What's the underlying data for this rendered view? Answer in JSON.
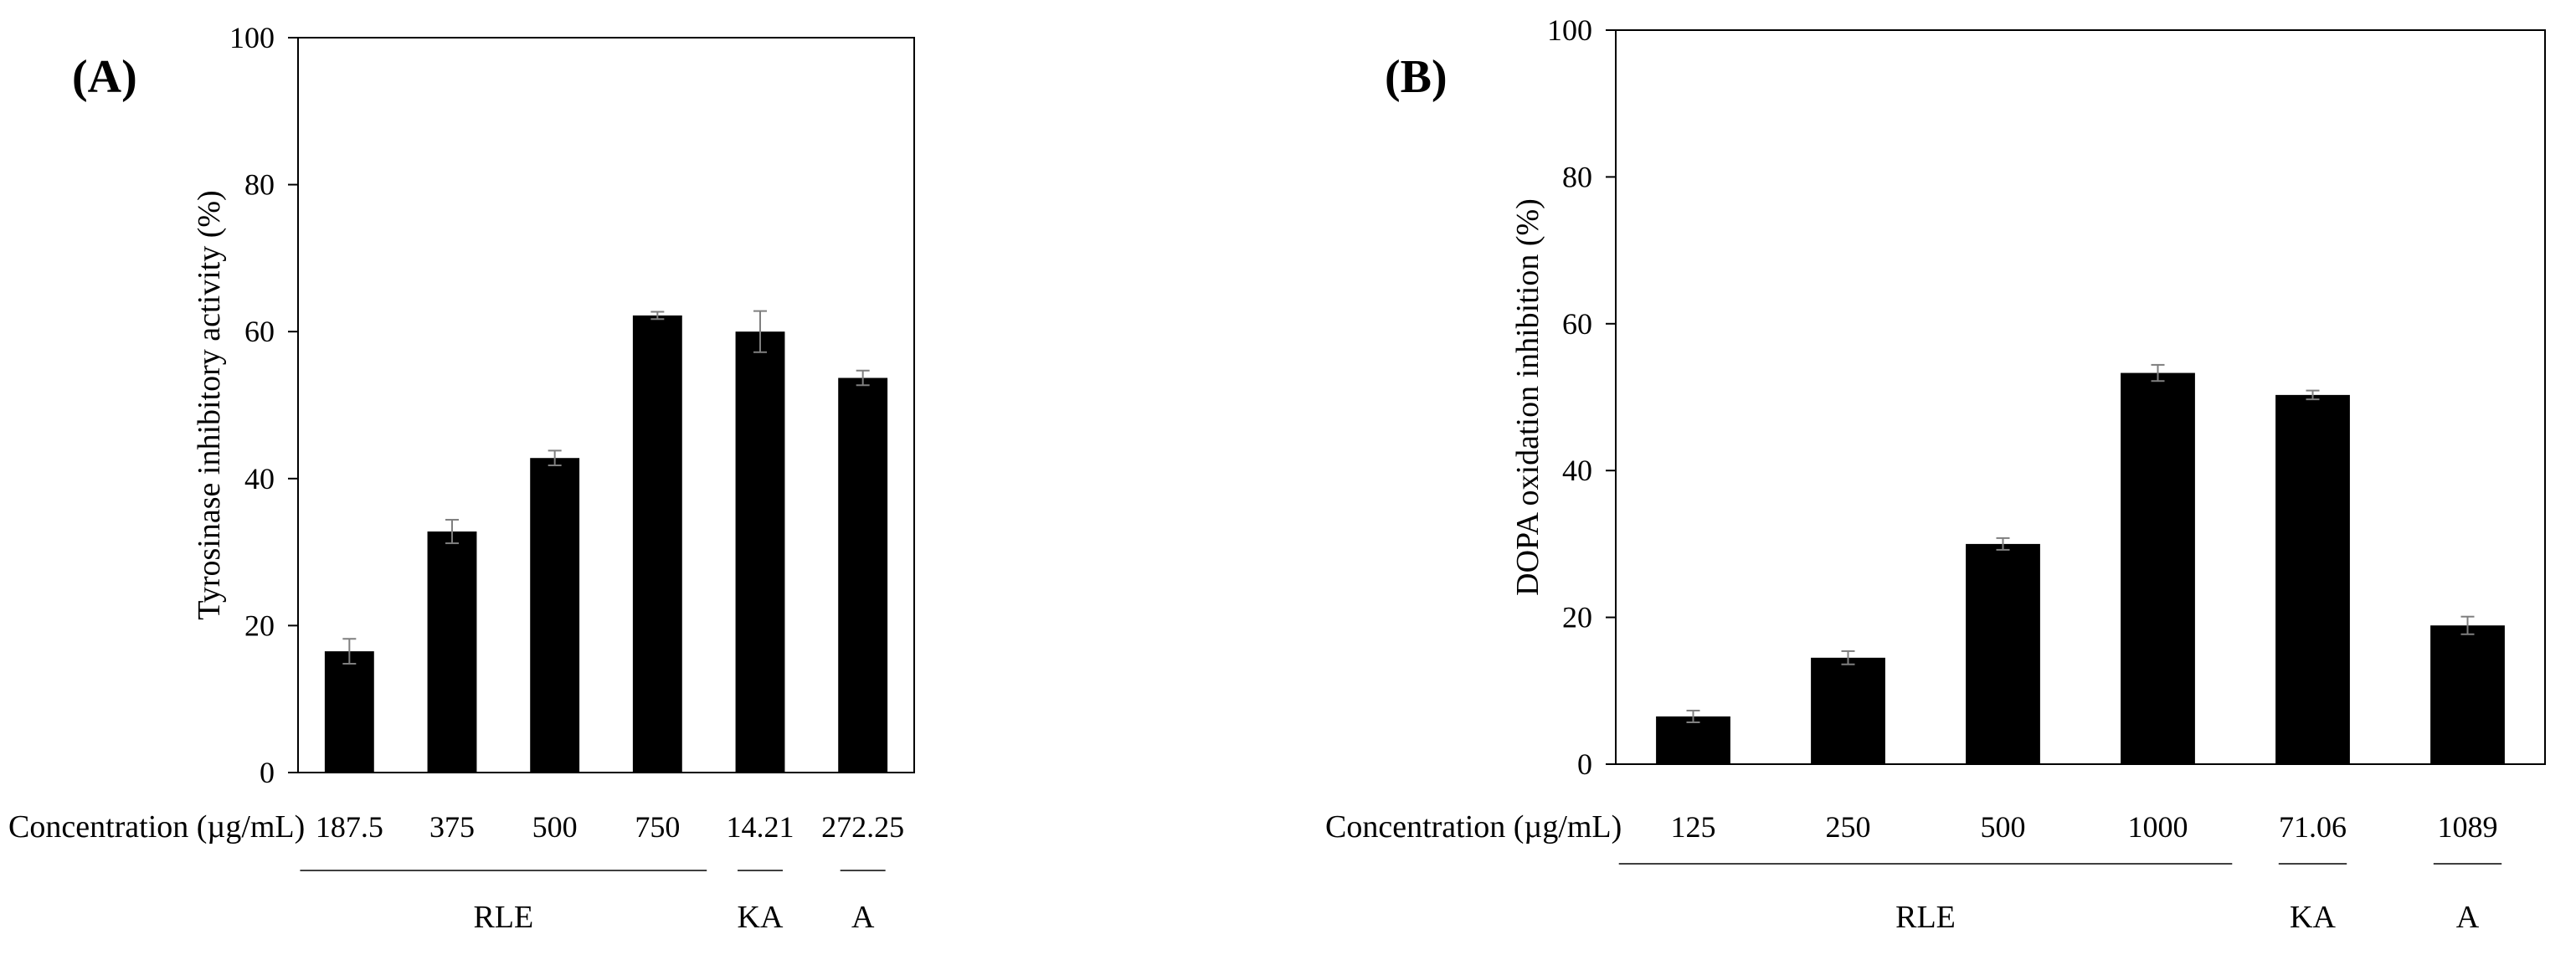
{
  "chart_data": [
    {
      "type": "bar",
      "panel_label": "(A)",
      "categories": [
        "187.5",
        "375",
        "500",
        "750",
        "14.21",
        "272.25"
      ],
      "values": [
        16.5,
        32.8,
        42.8,
        62.2,
        60.0,
        53.7
      ],
      "errors": [
        1.7,
        1.6,
        1.0,
        0.5,
        2.8,
        1.0
      ],
      "title": "",
      "xlabel": "Concentration (µg/mL)",
      "ylabel": "Tyrosinase  inhibitory  activity  (%)",
      "ylim": [
        0,
        100
      ],
      "yticks": [
        "0",
        "20",
        "40",
        "60",
        "80",
        "100"
      ],
      "groups": [
        {
          "label": "RLE",
          "start": 0,
          "end": 3
        },
        {
          "label": "KA",
          "start": 4,
          "end": 4
        },
        {
          "label": "A",
          "start": 5,
          "end": 5
        }
      ]
    },
    {
      "type": "bar",
      "panel_label": "(B)",
      "categories": [
        "125",
        "250",
        "500",
        "1000",
        "71.06",
        "1089"
      ],
      "values": [
        6.5,
        14.5,
        30.0,
        53.3,
        50.3,
        18.9
      ],
      "errors": [
        0.8,
        0.9,
        0.8,
        1.1,
        0.6,
        1.2
      ],
      "title": "",
      "xlabel": "Concentration (µg/mL)",
      "ylabel": "DOPA  oxidation  inhibition  (%)",
      "ylim": [
        0,
        100
      ],
      "yticks": [
        "0",
        "20",
        "40",
        "60",
        "80",
        "100"
      ],
      "groups": [
        {
          "label": "RLE",
          "start": 0,
          "end": 3
        },
        {
          "label": "KA",
          "start": 4,
          "end": 4
        },
        {
          "label": "A",
          "start": 5,
          "end": 5
        }
      ]
    }
  ]
}
